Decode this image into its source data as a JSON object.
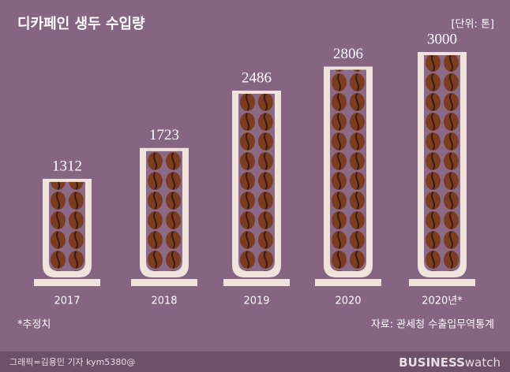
{
  "chart_data": {
    "type": "bar",
    "title": "디카페인 생두 수입량",
    "unit": "[단위: 톤]",
    "categories": [
      "2017",
      "2018",
      "2019",
      "2020",
      "2020년*"
    ],
    "values": [
      1312,
      1723,
      2486,
      2806,
      3000
    ],
    "ylim": [
      0,
      3000
    ],
    "color": "#efe3dc",
    "footnote": "*추정치",
    "source": "자료: 관세청 수출입무역통계",
    "credit": "그래픽=김용민 기자 kym5380@",
    "logo": {
      "bold": "BUSINESS",
      "light": "watch"
    }
  }
}
